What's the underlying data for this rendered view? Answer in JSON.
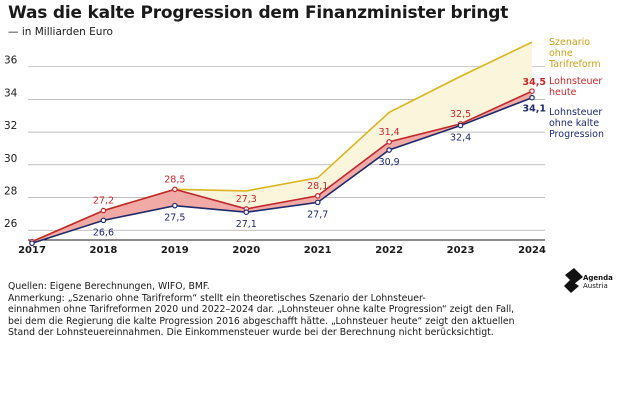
{
  "title": "Was die kalte Progression dem Finanzminister bringt",
  "subtitle": "— in Milliarden Euro",
  "chart_data": {
    "type": "line",
    "x": [
      "2017",
      "2018",
      "2019",
      "2020",
      "2021",
      "2022",
      "2023",
      "2024"
    ],
    "ylim": [
      25.4,
      37.2
    ],
    "yticks": [
      26,
      28,
      30,
      32,
      34,
      36
    ],
    "grid": true,
    "series": [
      {
        "name": "Szenario ohne Tarifreform",
        "color": "#d9b520",
        "values": [
          25.3,
          27.2,
          28.5,
          28.4,
          29.2,
          33.2,
          35.4,
          37.5
        ]
      },
      {
        "name": "Lohnsteuer heute",
        "color": "#c0282d",
        "values": [
          25.3,
          27.2,
          28.5,
          27.3,
          28.1,
          31.4,
          32.5,
          34.5
        ],
        "labels": [
          "",
          "27,2",
          "28,5",
          "27,3",
          "28,1",
          "31,4",
          "32,5",
          "34,5"
        ]
      },
      {
        "name": "Lohnsteuer ohne kalte Progression",
        "color": "#1f2a6b",
        "values": [
          25.2,
          26.6,
          27.5,
          27.1,
          27.7,
          30.9,
          32.4,
          34.1
        ],
        "labels": [
          "",
          "26,6",
          "27,5",
          "27,1",
          "27,7",
          "30,9",
          "32,4",
          "34,1"
        ]
      }
    ],
    "legend": [
      {
        "lines": [
          "Szenario",
          "ohne",
          "Tarifreform"
        ],
        "color": "#c9a21a"
      },
      {
        "lines": [
          "Lohnsteuer",
          "heute"
        ],
        "color": "#c0282d"
      },
      {
        "lines": [
          "Lohnsteuer",
          "ohne kalte",
          "Progression"
        ],
        "color": "#1f2a6b"
      }
    ],
    "fill_colors": {
      "red_area": "#f2aaa6",
      "yellow_area": "#fbf5dc"
    }
  },
  "footer": {
    "source": "Quellen: Eigene Berechnungen, WIFO, BMF.",
    "note_lines": [
      "Anmerkung: „Szenario ohne Tarifreform“ stellt ein theoretisches Szenario der Lohnsteuer-",
      "einnahmen ohne Tarifreformen 2020 und 2022–2024 dar. „Lohnsteuer ohne kalte Progression“ zeigt den Fall,",
      "bei dem die Regierung die kalte Progression 2016 abgeschafft hätte. „Lohnsteuer heute“ zeigt den aktuellen",
      "Stand der Lohnsteuereinnahmen. Die Einkommensteuer wurde bei der Berechnung nicht berücksichtigt."
    ]
  },
  "logo": {
    "name": "Agenda",
    "sub": "Austria"
  }
}
